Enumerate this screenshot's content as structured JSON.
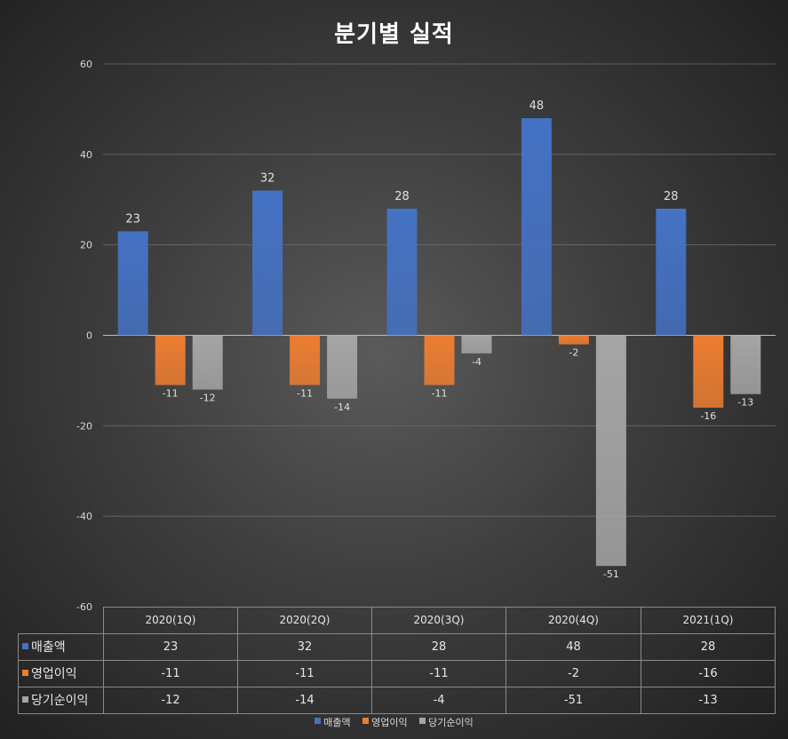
{
  "chart_data": {
    "type": "bar",
    "title": "분기별 실적",
    "categories": [
      "2020(1Q)",
      "2020(2Q)",
      "2020(3Q)",
      "2020(4Q)",
      "2021(1Q)"
    ],
    "series": [
      {
        "name": "매출액",
        "values": [
          23,
          32,
          28,
          48,
          28
        ],
        "color": "#4472c4"
      },
      {
        "name": "영업이익",
        "values": [
          -11,
          -11,
          -11,
          -2,
          -16
        ],
        "color": "#ed7d31"
      },
      {
        "name": "당기순이익",
        "values": [
          -12,
          -14,
          -4,
          -51,
          -13
        ],
        "color": "#a5a5a5"
      }
    ],
    "ylim": [
      -60,
      60
    ],
    "yticks": [
      60,
      40,
      20,
      0,
      -20,
      -40,
      -60
    ],
    "grid": true,
    "data_table": true,
    "legend_position": "bottom"
  }
}
